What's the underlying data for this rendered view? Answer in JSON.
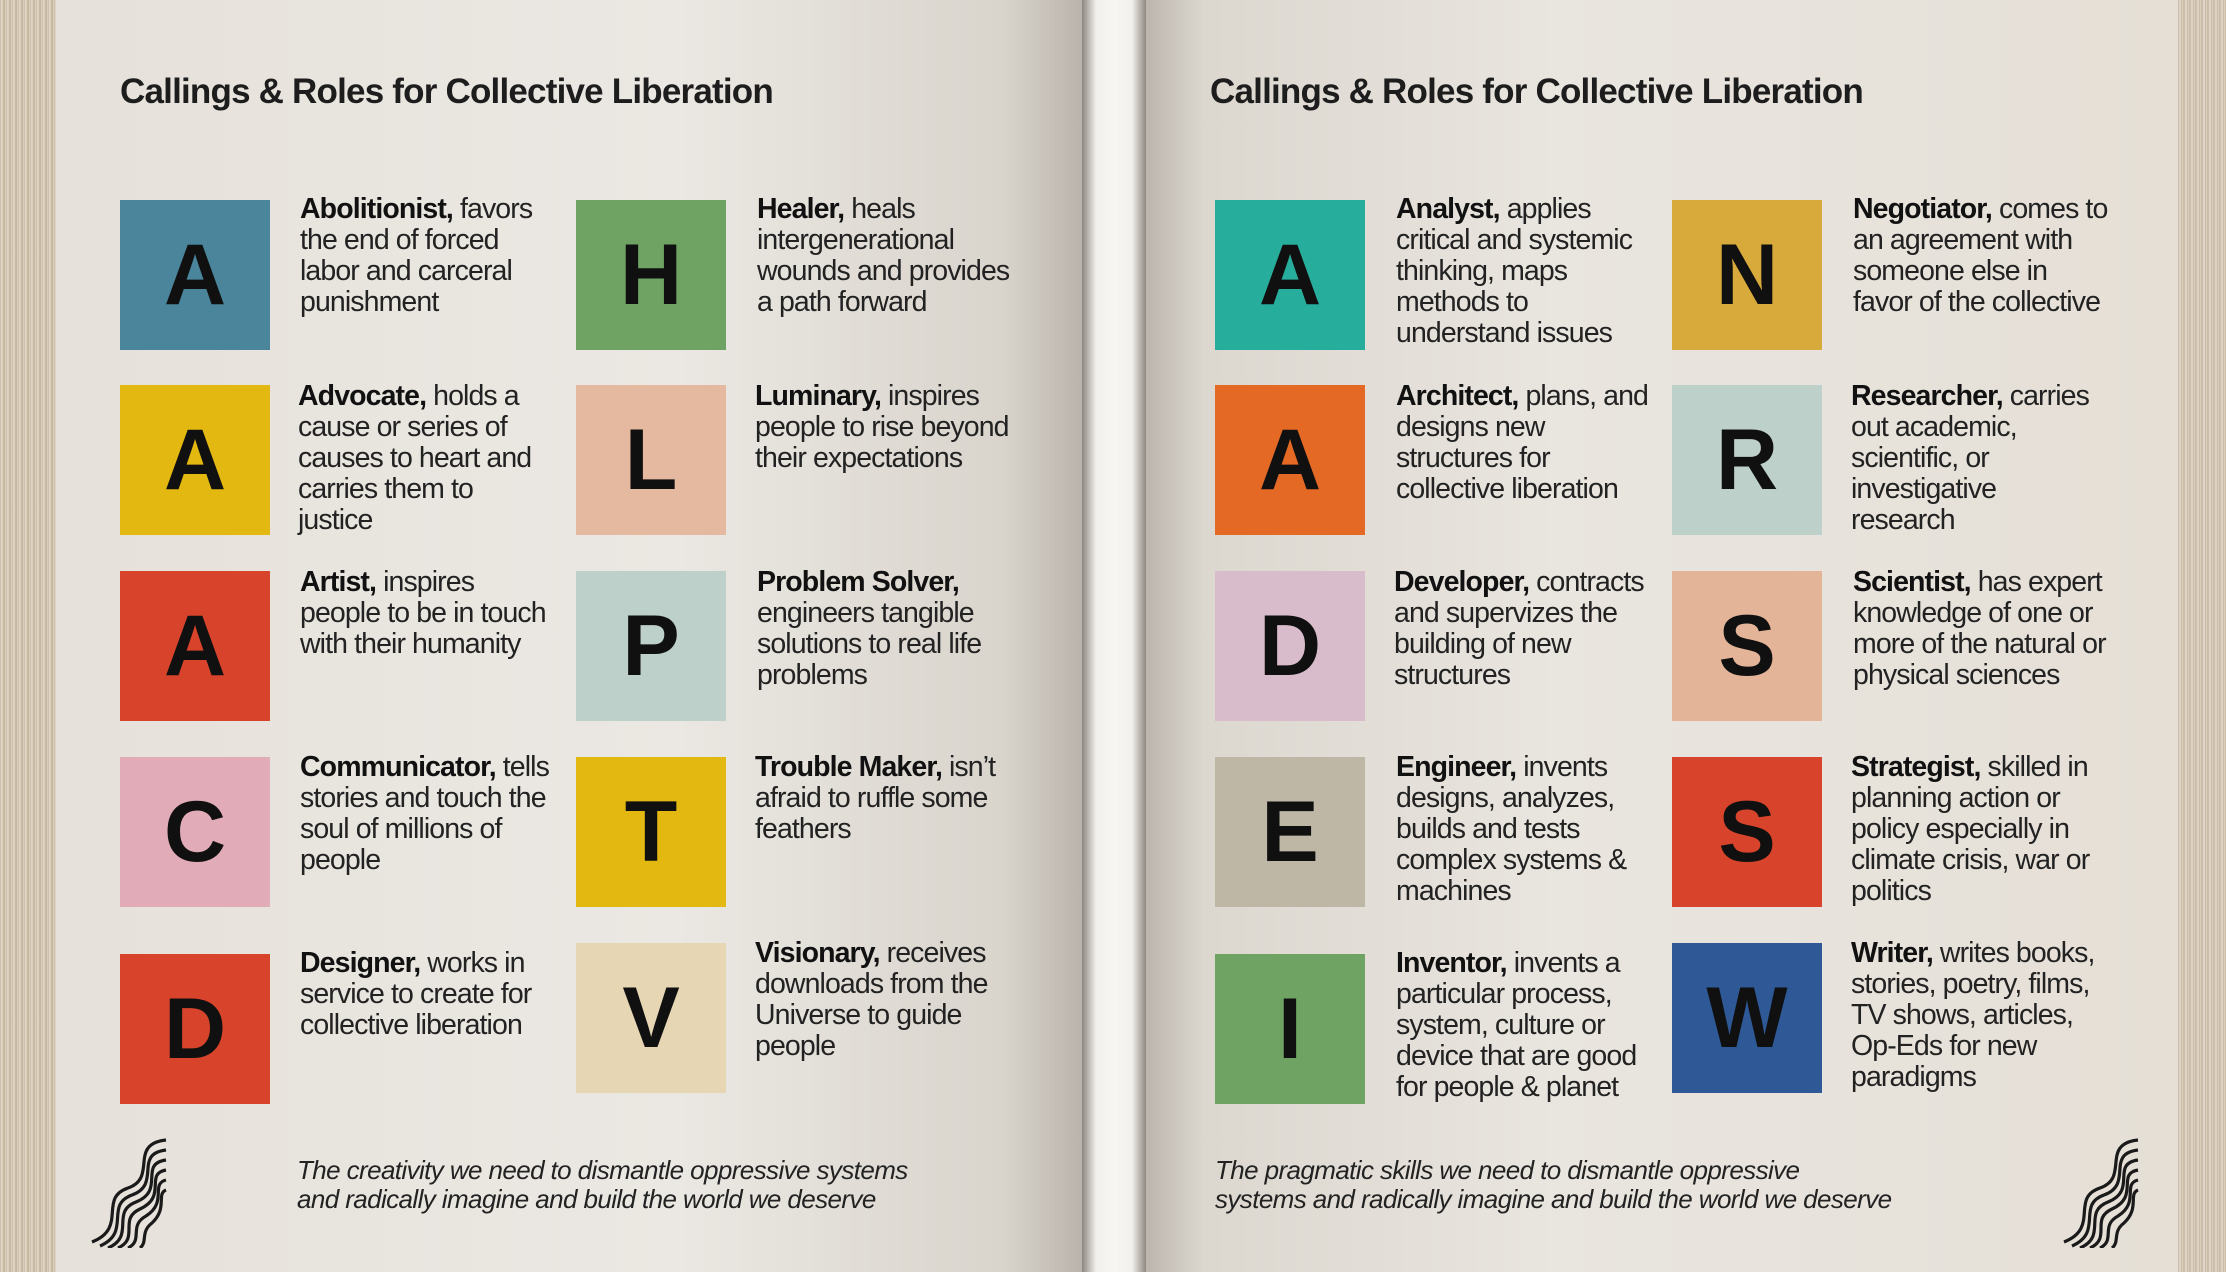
{
  "left_page": {
    "title": "Callings & Roles for Collective Liberation",
    "caption_line1": "The creativity we need to dismantle oppressive systems",
    "caption_line2": "and radically imagine and build the world we deserve",
    "col1": [
      {
        "letter": "A",
        "color": "#4a859c",
        "role": "Abolitionist,",
        "text": " favors the end of forced labor and carceral punishment"
      },
      {
        "letter": "A",
        "color": "#e3b810",
        "role": "Advocate,",
        "text": " holds a cause or series of causes to heart and carries them to justice"
      },
      {
        "letter": "A",
        "color": "#d8442b",
        "role": "Artist,",
        "text": " inspires people to be in touch with their humanity"
      },
      {
        "letter": "C",
        "color": "#e1abb7",
        "role": "Communicator,",
        "text": " tells stories and touch the soul of millions of people"
      },
      {
        "letter": "D",
        "color": "#d8442b",
        "role": "Designer,",
        "text": " works in service to create for collective liberation"
      }
    ],
    "col2": [
      {
        "letter": "H",
        "color": "#6fa364",
        "role": "Healer,",
        "text": " heals intergenerational wounds and provides a path forward"
      },
      {
        "letter": "L",
        "color": "#e5b8a0",
        "role": "Luminary,",
        "text": " inspires people to rise beyond their expectations"
      },
      {
        "letter": "P",
        "color": "#bdd0c9",
        "role": "Problem Solver,",
        "text": " engineers tangible solutions to real life problems"
      },
      {
        "letter": "T",
        "color": "#e3b810",
        "role": "Trouble Maker,",
        "text": " isn’t afraid to ruffle some feathers"
      },
      {
        "letter": "V",
        "color": "#e6d6b4",
        "role": "Visionary,",
        "text": " receives downloads from the Universe to guide people"
      }
    ]
  },
  "right_page": {
    "title": "Callings & Roles for Collective Liberation",
    "caption_line1": "The pragmatic skills we need to dismantle oppressive",
    "caption_line2": "systems and radically imagine and build the world we deserve",
    "col1": [
      {
        "letter": "A",
        "color": "#27ad9c",
        "role": "Analyst,",
        "text": " applies critical and systemic thinking, maps methods to understand issues"
      },
      {
        "letter": "A",
        "color": "#e36925",
        "role": "Architect,",
        "text": " plans, and designs new structures for collective liberation"
      },
      {
        "letter": "D",
        "color": "#d9bccb",
        "role": "Developer,",
        "text": " contracts and supervizes the building of new structures"
      },
      {
        "letter": "E",
        "color": "#beb7a6",
        "role": "Engineer,",
        "text": "  invents designs, analyzes, builds and tests complex systems & machines"
      },
      {
        "letter": "I",
        "color": "#6fa364",
        "role": "Inventor,",
        "text": " invents a particular process, system, culture or device that are good for people & planet"
      }
    ],
    "col2": [
      {
        "letter": "N",
        "color": "#d8a93b",
        "role": "Negotiator,",
        "text": "  comes to an agreement with someone else in favor of the collective"
      },
      {
        "letter": "R",
        "color": "#bdd0c9",
        "role": "Researcher,",
        "text": " carries out academic, scientific, or investigative research"
      },
      {
        "letter": "S",
        "color": "#e4b499",
        "role": "Scientist,",
        "text": " has expert knowledge of one or more of the natural or physical sciences"
      },
      {
        "letter": "S",
        "color": "#d8442b",
        "role": "Strategist,",
        "text": " skilled in planning action or policy especially in climate crisis, war or politics"
      },
      {
        "letter": "W",
        "color": "#2e5996",
        "role": "Writer,",
        "text": "  writes books, stories, poetry, films, TV shows, articles, Op-Eds for new paradigms"
      }
    ]
  }
}
